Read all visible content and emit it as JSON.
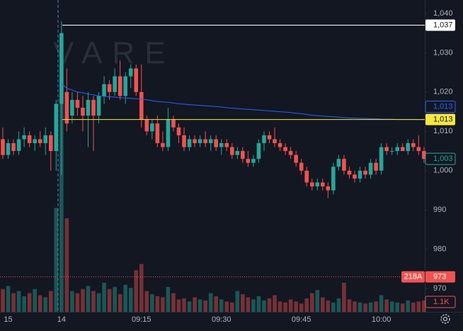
{
  "chart_data": {
    "type": "candlestick",
    "watermark": "VARE",
    "categories": [
      null,
      "15",
      null,
      null,
      null,
      null,
      null,
      null,
      null,
      null,
      null,
      "14",
      null,
      null,
      null,
      null,
      null,
      null,
      null,
      null,
      null,
      null,
      null,
      null,
      null,
      null,
      "09:15",
      null,
      null,
      null,
      null,
      null,
      null,
      null,
      null,
      null,
      null,
      null,
      null,
      null,
      null,
      "09:30",
      null,
      null,
      null,
      null,
      null,
      null,
      null,
      null,
      null,
      null,
      null,
      null,
      null,
      null,
      "09:45",
      null,
      null,
      null,
      null,
      null,
      null,
      null,
      null,
      null,
      null,
      null,
      null,
      null,
      null,
      "10:00",
      null,
      null,
      null,
      null,
      null,
      null,
      null,
      null
    ],
    "open": [
      1008,
      1004,
      1007,
      1005,
      1008,
      1009,
      1007,
      1008,
      1007,
      1009,
      1005,
      1017,
      1020,
      1014,
      1018,
      1016,
      1014,
      1018,
      1014,
      1019,
      1022,
      1020,
      1024,
      1019,
      1024,
      1026,
      1020,
      1013,
      1010,
      1012,
      1007,
      1006,
      1013,
      1011,
      1009,
      1006,
      1008,
      1007,
      1008,
      1007,
      1008,
      1006,
      1007,
      1006,
      1004,
      1005,
      1003,
      1002,
      1003,
      1007,
      1009,
      1008,
      1007,
      1006,
      1005,
      1004,
      1002,
      1000,
      997,
      996,
      997,
      996,
      995,
      1001,
      1003,
      1000,
      999,
      998,
      1000,
      999,
      1002,
      1000,
      1006,
      1005,
      1005,
      1006,
      1005,
      1007,
      1006,
      1005
    ],
    "high": [
      1011,
      1008,
      1008,
      1010,
      1011,
      1010,
      1009,
      1010,
      1011,
      1010,
      1018,
      1038,
      1026,
      1020,
      1020,
      1019,
      1020,
      1019,
      1020,
      1024,
      1023,
      1026,
      1028,
      1025,
      1027,
      1027,
      1027,
      1014,
      1013,
      1014,
      1010,
      1016,
      1014,
      1012,
      1011,
      1009,
      1009,
      1009,
      1010,
      1009,
      1009,
      1008,
      1008,
      1007,
      1006,
      1006,
      1005,
      1004,
      1008,
      1010,
      1010,
      1011,
      1008,
      1007,
      1006,
      1005,
      1003,
      1001,
      998,
      998,
      998,
      997,
      1002,
      1004,
      1004,
      1001,
      1000,
      1001,
      1001,
      1003,
      1003,
      1007,
      1007,
      1006,
      1007,
      1007,
      1008,
      1008,
      1009,
      1006
    ],
    "low": [
      1003,
      1003,
      1004,
      1004,
      1006,
      1006,
      1005,
      1006,
      1004,
      1000,
      1000,
      999,
      1010,
      1012,
      1014,
      1010,
      1006,
      1005,
      1012,
      1017,
      1018,
      1019,
      1018,
      1017,
      1021,
      1019,
      1011,
      1009,
      1008,
      1006,
      1005,
      1005,
      1010,
      1007,
      1005,
      1005,
      1006,
      1006,
      1006,
      1005,
      1005,
      1004,
      1005,
      1003,
      1003,
      1002,
      1001,
      1001,
      1002,
      1005,
      1007,
      1006,
      1005,
      1004,
      1003,
      1001,
      999,
      996,
      995,
      995,
      995,
      993,
      994,
      1000,
      999,
      998,
      997,
      997,
      998,
      998,
      999,
      999,
      1004,
      1004,
      1004,
      1005,
      1004,
      1005,
      1004,
      1002
    ],
    "close": [
      1004,
      1007,
      1005,
      1008,
      1009,
      1007,
      1008,
      1007,
      1009,
      1005,
      1017,
      1035,
      1012,
      1018,
      1016,
      1014,
      1018,
      1014,
      1019,
      1022,
      1020,
      1024,
      1019,
      1024,
      1026,
      1020,
      1013,
      1010,
      1012,
      1007,
      1006,
      1013,
      1011,
      1009,
      1006,
      1008,
      1007,
      1008,
      1007,
      1008,
      1006,
      1007,
      1006,
      1004,
      1005,
      1003,
      1002,
      1003,
      1007,
      1009,
      1008,
      1007,
      1006,
      1005,
      1004,
      1002,
      1000,
      997,
      996,
      997,
      996,
      995,
      1001,
      1003,
      1000,
      999,
      998,
      1000,
      999,
      1002,
      1000,
      1006,
      1005,
      1005,
      1006,
      1005,
      1007,
      1006,
      1005,
      1003
    ],
    "volume": [
      2200,
      2500,
      1800,
      2000,
      1500,
      1800,
      2200,
      1600,
      1400,
      2000,
      10000,
      24000,
      9000,
      2000,
      1800,
      2200,
      2500,
      2000,
      1800,
      2800,
      2200,
      2400,
      1700,
      2600,
      2300,
      4000,
      4600,
      2000,
      1700,
      1500,
      1400,
      2400,
      1800,
      1200,
      1300,
      1000,
      1400,
      1200,
      1100,
      1800,
      1500,
      1200,
      1000,
      900,
      2000,
      1700,
      1400,
      1200,
      1500,
      1100,
      1300,
      1600,
      1000,
      900,
      1200,
      1000,
      800,
      1300,
      1800,
      2100,
      1400,
      1100,
      900,
      1300,
      2800,
      1200,
      1000,
      900,
      800,
      900,
      1000,
      1600,
      1200,
      1000,
      900,
      800,
      1100,
      900,
      1000,
      1100
    ],
    "up_color": "#26a69a",
    "down_color": "#ef5350",
    "ma": {
      "color": "#2962ff",
      "label": {
        "value": 1013,
        "label": "1,013"
      },
      "values": [
        null,
        null,
        null,
        null,
        null,
        null,
        null,
        null,
        null,
        null,
        null,
        1022,
        1021,
        1020.5,
        1020,
        1019.8,
        1019.5,
        1019.3,
        1019,
        1018.9,
        1018.8,
        1018.7,
        1018.6,
        1018.5,
        1018.4,
        1018.3,
        1018.2,
        1018,
        1017.8,
        1017.6,
        1017.5,
        1017.4,
        1017.2,
        1017,
        1016.9,
        1016.8,
        1016.7,
        1016.6,
        1016.5,
        1016.4,
        1016.3,
        1016.2,
        1016,
        1015.9,
        1015.8,
        1015.7,
        1015.6,
        1015.5,
        1015.4,
        1015.3,
        1015.2,
        1015.1,
        1015,
        1014.9,
        1014.8,
        1014.6,
        1014.5,
        1014.3,
        1014.1,
        1014,
        1013.9,
        1013.8,
        1013.7,
        1013.6,
        1013.5,
        1013.4,
        1013.4,
        1013.3,
        1013.3,
        1013.2,
        1013.2,
        1013.1,
        1013.1,
        1013.1,
        1013,
        1013,
        1013,
        1013,
        1013,
        1013
      ]
    },
    "lines": [
      {
        "value": 1037,
        "label": "1,037",
        "color": "#ffffff"
      },
      {
        "value": 1013,
        "label": "1,013",
        "color": "#f5e642"
      }
    ],
    "last_price": {
      "value": 1003,
      "label": "1,003"
    },
    "alert": {
      "value": 973,
      "label": "973",
      "tag": "218A",
      "color": "#ef5350"
    },
    "volume_label": "1.1K",
    "ylim": [
      964.1,
      1043.4
    ],
    "yticks": [
      {
        "value": 1040,
        "label": "1,040"
      },
      {
        "value": 1030,
        "label": "1,030"
      },
      {
        "value": 1020,
        "label": "1,020"
      },
      {
        "value": 1010,
        "label": "1,010"
      },
      {
        "value": 1000,
        "label": "1,000"
      },
      990,
      980,
      970
    ],
    "volume_lim": [
      0,
      30000
    ]
  }
}
